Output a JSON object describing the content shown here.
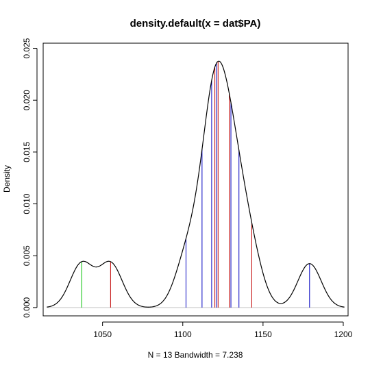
{
  "chart_data": {
    "type": "line",
    "title": "density.default(x = dat$PA)",
    "xlabel": "N = 13   Bandwidth = 7.238",
    "ylabel": "Density",
    "xlim": [
      1013,
      1203
    ],
    "ylim": [
      -0.0008,
      0.0255
    ],
    "x_ticks": [
      1050,
      1100,
      1150,
      1200
    ],
    "x_tick_labels": [
      "1050",
      "1100",
      "1150",
      "1200"
    ],
    "y_ticks": [
      0.0,
      0.005,
      0.01,
      0.015,
      0.02,
      0.025
    ],
    "y_tick_labels": [
      "0.000",
      "0.005",
      "0.010",
      "0.015",
      "0.020",
      "0.025"
    ],
    "bandwidth": 7.238,
    "n": 13,
    "grid": false,
    "baseline_color": "#c8c8c8",
    "curve_color": "#000000",
    "observations": [
      {
        "x": 1037,
        "color": "#00c000"
      },
      {
        "x": 1055,
        "color": "#c00000"
      },
      {
        "x": 1102,
        "color": "#0000c0"
      },
      {
        "x": 1112,
        "color": "#0000c0"
      },
      {
        "x": 1118,
        "color": "#0000c0"
      },
      {
        "x": 1120,
        "color": "#c00000"
      },
      {
        "x": 1121,
        "color": "#0000c0"
      },
      {
        "x": 1122,
        "color": "#c00000"
      },
      {
        "x": 1129,
        "color": "#c00000"
      },
      {
        "x": 1130,
        "color": "#0000c0"
      },
      {
        "x": 1135,
        "color": "#0000c0"
      },
      {
        "x": 1143,
        "color": "#c00000"
      },
      {
        "x": 1179,
        "color": "#0000c0"
      }
    ]
  }
}
